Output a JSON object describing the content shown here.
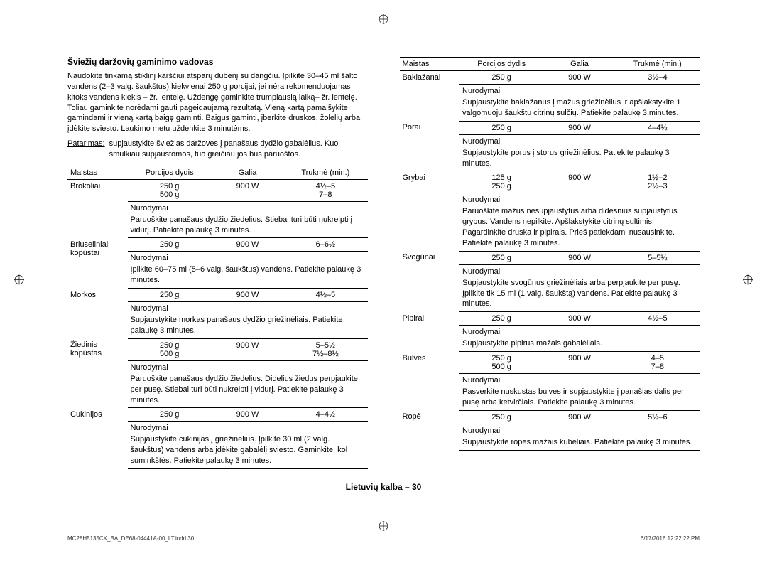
{
  "heading": "Šviežių daržovių gaminimo vadovas",
  "intro": "Naudokite tinkamą stiklinį karščiui atsparų dubenį su dangčiu. Įpilkite 30–45 ml šalto vandens (2–3 valg. šaukštus) kiekvienai 250 g porcijai, jei nėra rekomenduojamas kitoks vandens kiekis – žr. lentelę. Uždengę gaminkite trumpiausią laiką– žr. lentelę. Toliau gaminkite norėdami gauti pageidaujamą rezultatą. Vieną kartą pamaišykite gamindami ir vieną kartą baigę gaminti. Baigus gaminti, įberkite druskos, žolelių arba įdėkite sviesto. Laukimo metu uždenkite 3 minutėms.",
  "tip_label": "Patarimas:",
  "tip_text": "supjaustykite šviežias daržoves į panašaus dydžio gabalėlius. Kuo smulkiau supjaustomos, tuo greičiau jos bus paruoštos.",
  "headers": {
    "food": "Maistas",
    "portion": "Porcijos dydis",
    "power": "Galia",
    "time": "Trukmė (min.)"
  },
  "instr_label": "Nurodymai",
  "left_rows": [
    {
      "food": "Brokoliai",
      "portion": "250 g\n500 g",
      "power": "900 W",
      "time": "4½–5\n7–8",
      "instr": "Paruoškite panašaus dydžio žiedelius. Stiebai turi būti nukreipti į vidurį. Patiekite palaukę 3 minutes."
    },
    {
      "food": "Briuseliniai kopūstai",
      "portion": "250 g",
      "power": "900 W",
      "time": "6–6½",
      "instr": "Įpilkite 60–75 ml (5–6 valg. šaukštus) vandens. Patiekite palaukę 3 minutes."
    },
    {
      "food": "Morkos",
      "portion": "250 g",
      "power": "900 W",
      "time": "4½–5",
      "instr": "Supjaustykite morkas panašaus dydžio griežinėliais. Patiekite palaukę 3 minutes."
    },
    {
      "food": "Žiedinis kopūstas",
      "portion": "250 g\n500 g",
      "power": "900 W",
      "time": "5–5½\n7½–8½",
      "instr": "Paruoškite panašaus dydžio žiedelius. Didelius žiedus perpjaukite per pusę. Stiebai turi būti nukreipti į vidurį. Patiekite palaukę 3 minutes."
    },
    {
      "food": "Cukinijos",
      "portion": "250 g",
      "power": "900 W",
      "time": "4–4½",
      "instr": "Supjaustykite cukinijas į griežinėlius. Įpilkite 30 ml (2 valg. šaukštus) vandens arba įdėkite gabalėlį sviesto. Gaminkite, kol suminkštės. Patiekite palaukę 3 minutes."
    }
  ],
  "right_rows": [
    {
      "food": "Baklažanai",
      "portion": "250 g",
      "power": "900 W",
      "time": "3½–4",
      "instr": "Supjaustykite baklažanus į mažus griežinėlius ir apšlakstykite 1 valgomuoju šaukštu citrinų sulčių. Patiekite palaukę 3 minutes."
    },
    {
      "food": "Porai",
      "portion": "250 g",
      "power": "900 W",
      "time": "4–4½",
      "instr": "Supjaustykite porus į storus griežinėlius. Patiekite palaukę 3 minutes."
    },
    {
      "food": "Grybai",
      "portion": "125 g\n250 g",
      "power": "900 W",
      "time": "1½–2\n2½–3",
      "instr": "Paruoškite mažus nesupjaustytus arba didesnius supjaustytus grybus. Vandens nepilkite. Apšlakstykite citrinų sultimis. Pagardinkite druska ir pipirais. Prieš patiekdami nusausinkite. Patiekite palaukę 3 minutes."
    },
    {
      "food": "Svogūnai",
      "portion": "250 g",
      "power": "900 W",
      "time": "5–5½",
      "instr": "Supjaustykite svogūnus griežinėliais arba perpjaukite per pusę. Įpilkite tik 15 ml (1 valg. šaukštą) vandens. Patiekite palaukę 3 minutes."
    },
    {
      "food": "Pipirai",
      "portion": "250 g",
      "power": "900 W",
      "time": "4½–5",
      "instr": "Supjaustykite pipirus mažais gabalėliais."
    },
    {
      "food": "Bulvės",
      "portion": "250 g\n500 g",
      "power": "900 W",
      "time": "4–5\n7–8",
      "instr": "Pasverkite nuskustas bulves ir supjaustykite į panašias dalis per pusę arba ketvirčiais. Patiekite palaukę 3 minutes."
    },
    {
      "food": "Ropė",
      "portion": "250 g",
      "power": "900 W",
      "time": "5½–6",
      "instr": "Supjaustykite ropes mažais kubeliais. Patiekite palaukę 3 minutes."
    }
  ],
  "page_footer": "Lietuvių kalba – 30",
  "doc_left": "MC28H5135CK_BA_DE68-04441A-00_LT.indd   30",
  "doc_right": "6/17/2016   12:22:22 PM"
}
